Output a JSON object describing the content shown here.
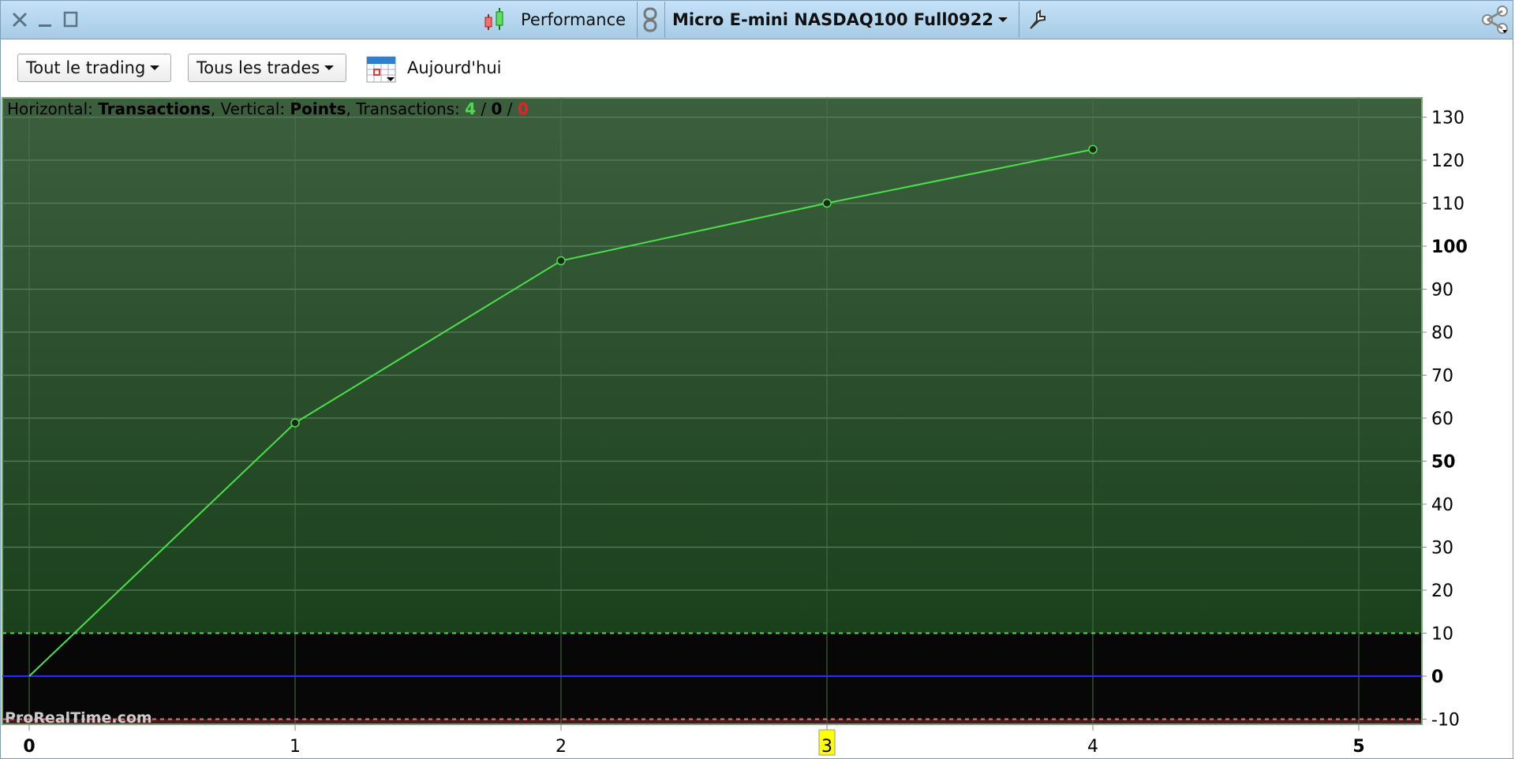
{
  "window": {
    "title": "Performance",
    "instrument": "Micro E-mini NASDAQ100 Full0922",
    "icons": [
      "close-icon",
      "minimize-icon",
      "maximize-icon",
      "candlestick-icon",
      "link-icon",
      "wrench-icon",
      "share-icon"
    ]
  },
  "toolbar": {
    "scope_label": "Tout le trading",
    "trades_label": "Tous les trades",
    "date_label": "Aujourd'hui"
  },
  "info": {
    "h_prefix": "Horizontal: ",
    "h_value": "Transactions",
    "v_prefix": ", Vertical: ",
    "v_value": "Points",
    "t_prefix": ", Transactions: ",
    "wins": "4",
    "sep1": " / ",
    "neutral": "0",
    "sep2": " / ",
    "losses": "0"
  },
  "watermark": "ProRealTime.com",
  "colors": {
    "line": "#4be04b",
    "zero_line": "#2b2bff",
    "upper_threshold": "#4be04b",
    "lower_threshold": "#ff6b6b",
    "highlight": "#ffff00",
    "win": "#4be04b",
    "loss": "#e8202a"
  },
  "chart_data": {
    "type": "line",
    "xlabel": "Transactions",
    "ylabel": "Points",
    "x": [
      0,
      1,
      2,
      3,
      4
    ],
    "y": [
      0,
      58.9,
      96.6,
      110,
      122.5
    ],
    "xlim": [
      0,
      5.2
    ],
    "ylim": [
      -11.5,
      132
    ],
    "x_ticks": [
      "0",
      "1",
      "2",
      "3",
      "4",
      "5"
    ],
    "x_highlighted_tick": "3",
    "y_ticks": [
      "130",
      "120",
      "110",
      "100",
      "90",
      "80",
      "70",
      "60",
      "50",
      "40",
      "30",
      "20",
      "10",
      "0",
      "-10"
    ],
    "y_tick_values": [
      130,
      120,
      110,
      100,
      90,
      80,
      70,
      60,
      50,
      40,
      30,
      20,
      10,
      0,
      -10
    ],
    "bold_y_ticks": [
      "100",
      "50",
      "0"
    ],
    "thresholds": [
      10,
      -10
    ],
    "grid": true
  }
}
